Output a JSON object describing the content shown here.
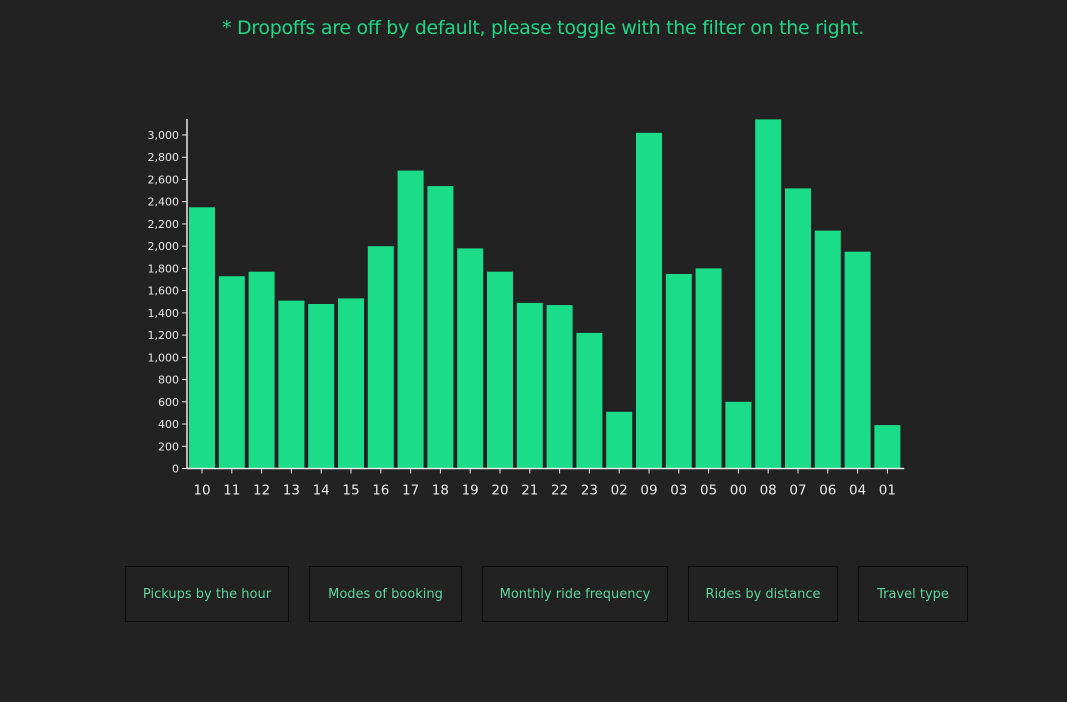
{
  "notice": "* Dropoffs are off by default, please toggle with the filter on the right.",
  "nav": {
    "buttons": [
      "Pickups by the hour",
      "Modes of booking",
      "Monthly ride frequency",
      "Rides by distance",
      "Travel type"
    ]
  },
  "colors": {
    "accent": "#1bdc88",
    "background": "#222222",
    "axis": "#e8e8e8"
  },
  "chart_data": {
    "type": "bar",
    "categories": [
      "10",
      "11",
      "12",
      "13",
      "14",
      "15",
      "16",
      "17",
      "18",
      "19",
      "20",
      "21",
      "22",
      "23",
      "02",
      "09",
      "03",
      "05",
      "00",
      "08",
      "07",
      "06",
      "04",
      "01"
    ],
    "values": [
      2350,
      1730,
      1770,
      1510,
      1480,
      1530,
      2000,
      2680,
      2540,
      1980,
      1770,
      1490,
      1470,
      1220,
      510,
      3020,
      1750,
      1800,
      600,
      3140,
      2520,
      2140,
      1950,
      390
    ],
    "yticks": [
      "0",
      "200",
      "400",
      "600",
      "800",
      "1,000",
      "1,200",
      "1,400",
      "1,600",
      "1,800",
      "2,000",
      "2,200",
      "2,400",
      "2,600",
      "2,800",
      "3,000"
    ],
    "ylim": [
      0,
      3000
    ],
    "title": "",
    "xlabel": "",
    "ylabel": ""
  }
}
